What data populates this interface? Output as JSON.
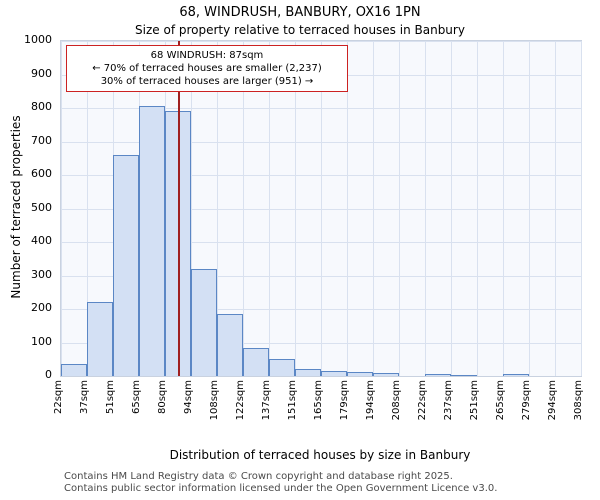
{
  "title": "68, WINDRUSH, BANBURY, OX16 1PN",
  "subtitle": "Size of property relative to terraced houses in Banbury",
  "ylabel": "Number of terraced properties",
  "xlabel": "Distribution of terraced houses by size in Banbury",
  "annotation": {
    "line1": "68 WINDRUSH: 87sqm",
    "line2": "← 70% of terraced houses are smaller (2,237)",
    "line3": "30% of terraced houses are larger (951) →"
  },
  "footer": {
    "line1": "Contains HM Land Registry data © Crown copyright and database right 2025.",
    "line2": "Contains public sector information licensed under the Open Government Licence v3.0."
  },
  "chart_data": {
    "type": "bar",
    "title": "68, WINDRUSH, BANBURY, OX16 1PN",
    "subtitle": "Size of property relative to terraced houses in Banbury",
    "xlabel": "Distribution of terraced houses by size in Banbury",
    "ylabel": "Number of terraced properties",
    "bin_edges_sqm": [
      22,
      37,
      51,
      65,
      80,
      94,
      108,
      122,
      137,
      151,
      165,
      179,
      194,
      208,
      222,
      237,
      251,
      265,
      279,
      294,
      308
    ],
    "categories": [
      "22sqm",
      "37sqm",
      "51sqm",
      "65sqm",
      "80sqm",
      "94sqm",
      "108sqm",
      "122sqm",
      "137sqm",
      "151sqm",
      "165sqm",
      "179sqm",
      "194sqm",
      "208sqm",
      "222sqm",
      "237sqm",
      "251sqm",
      "265sqm",
      "279sqm",
      "294sqm",
      "308sqm"
    ],
    "values": [
      35,
      220,
      660,
      805,
      790,
      320,
      185,
      85,
      50,
      20,
      15,
      12,
      9,
      0,
      6,
      3,
      0,
      5,
      0,
      0
    ],
    "xlim": [
      22,
      308
    ],
    "ylim": [
      0,
      1000
    ],
    "yticks": [
      0,
      100,
      200,
      300,
      400,
      500,
      600,
      700,
      800,
      900,
      1000
    ],
    "grid": true,
    "legend": "none",
    "marker": {
      "value_sqm": 87,
      "label": "68 WINDRUSH: 87sqm",
      "pct_smaller": 70,
      "count_smaller": 2237,
      "pct_larger": 30,
      "count_larger": 951
    },
    "colors": {
      "bar_fill": "#d3e0f4",
      "bar_edge": "#5b87c5",
      "marker_line": "#a02020",
      "annotation_border": "#cc2222",
      "grid": "#d9e1ef",
      "plot_bg": "#f7f9fd"
    }
  }
}
